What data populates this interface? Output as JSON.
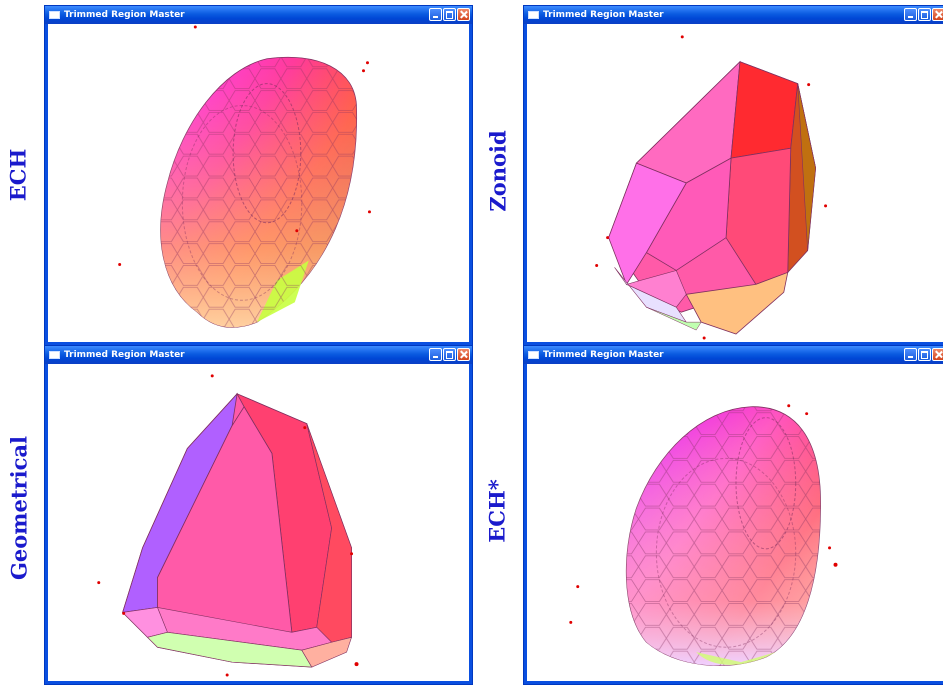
{
  "labels": {
    "ech": "ECH",
    "zonoid": "Zonoid",
    "geometrical": "Geometrical",
    "ech_star": "ECH*"
  },
  "windows": [
    {
      "title": "Trimmed Region Master"
    },
    {
      "title": "Trimmed Region Master"
    },
    {
      "title": "Trimmed Region Master"
    },
    {
      "title": "Trimmed Region Master"
    }
  ],
  "colors": {
    "label": "#1a1acc",
    "titlebar": "#0a5be0",
    "frame": "#0a4fe0",
    "close_button": "#d2441d",
    "data_point": "#e00000"
  },
  "icons": {
    "app": "window-app-icon",
    "minimize": "minimize-icon",
    "maximize": "maximize-icon",
    "close": "close-icon"
  }
}
